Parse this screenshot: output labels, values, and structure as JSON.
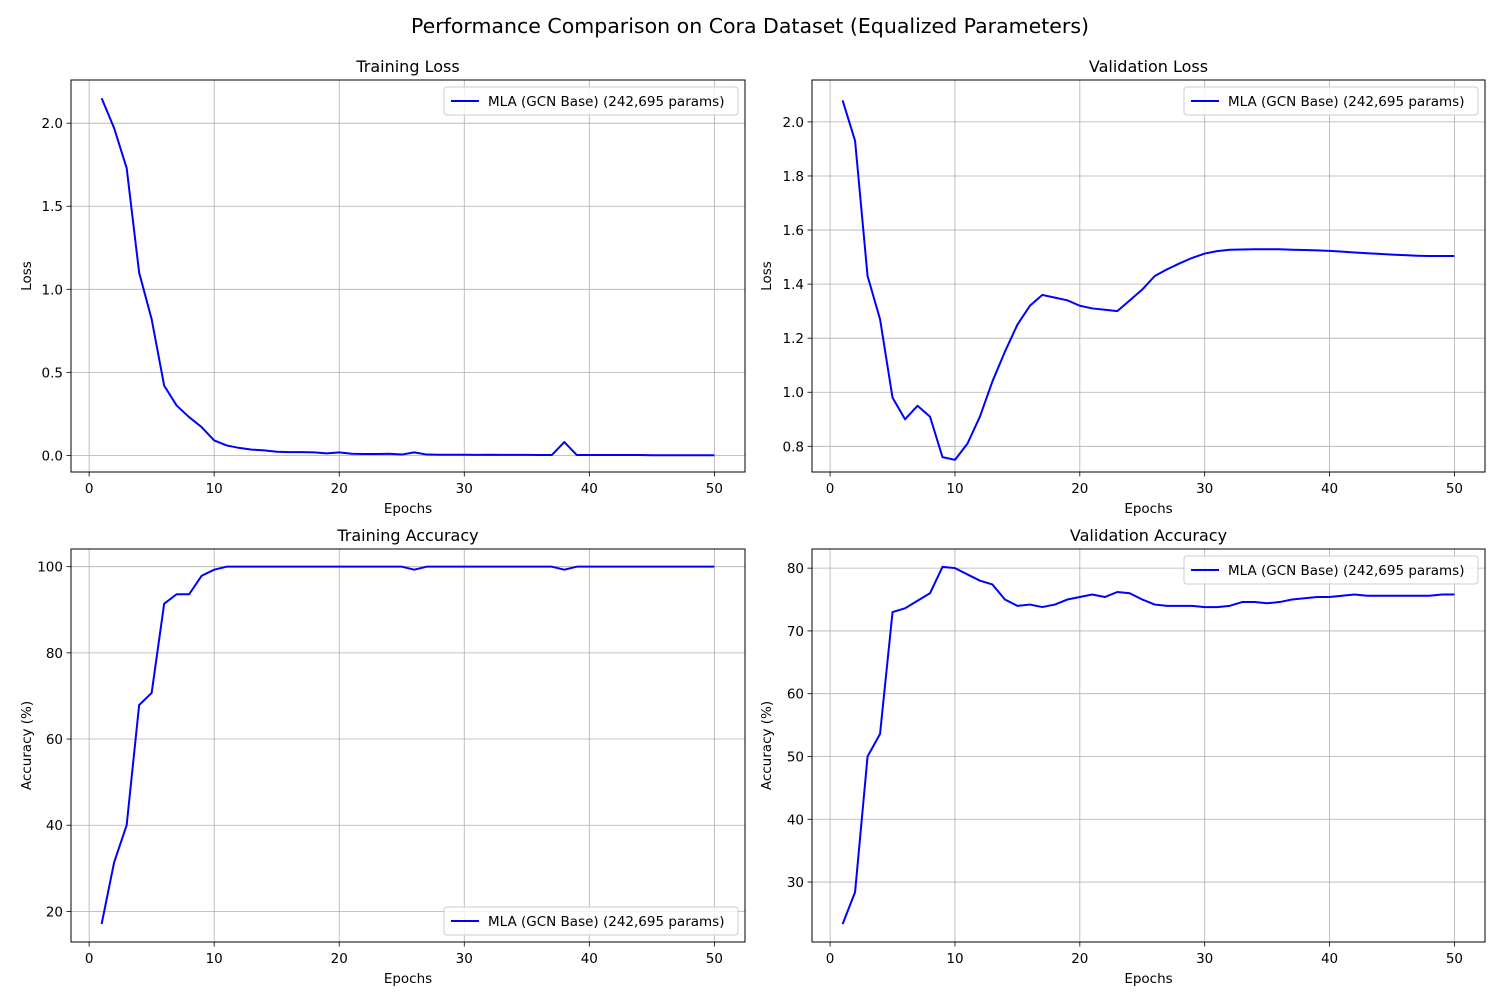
{
  "figure_title": "Performance Comparison on Cora Dataset (Equalized Parameters)",
  "colors": {
    "line": "#0000ff",
    "grid": "#b0b0b0",
    "axes": "#000000",
    "legend_border": "#cccccc"
  },
  "chart_data": [
    {
      "type": "line",
      "title": "Training Loss",
      "xlabel": "Epochs",
      "ylabel": "Loss",
      "xlim": [
        -1.45,
        52.45
      ],
      "ylim": [
        -0.1,
        2.26
      ],
      "xticks": [
        0,
        10,
        20,
        30,
        40,
        50
      ],
      "yticks": [
        0.0,
        0.5,
        1.0,
        1.5,
        2.0
      ],
      "ytick_labels": [
        "0.0",
        "0.5",
        "1.0",
        "1.5",
        "2.0"
      ],
      "grid": true,
      "legend_position": "upper-right",
      "series": [
        {
          "name": "MLA (GCN Base) (242,695 params)",
          "color": "#0000ff",
          "x": [
            1,
            2,
            3,
            4,
            5,
            6,
            7,
            8,
            9,
            10,
            11,
            12,
            13,
            14,
            15,
            16,
            17,
            18,
            19,
            20,
            21,
            22,
            23,
            24,
            25,
            26,
            27,
            28,
            29,
            30,
            31,
            32,
            33,
            34,
            35,
            36,
            37,
            38,
            39,
            40,
            41,
            42,
            43,
            44,
            45,
            46,
            47,
            48,
            49,
            50
          ],
          "values": [
            2.15,
            1.97,
            1.73,
            1.1,
            0.82,
            0.42,
            0.3,
            0.23,
            0.17,
            0.09,
            0.06,
            0.045,
            0.035,
            0.03,
            0.022,
            0.02,
            0.02,
            0.018,
            0.012,
            0.018,
            0.01,
            0.008,
            0.008,
            0.01,
            0.005,
            0.018,
            0.005,
            0.004,
            0.004,
            0.004,
            0.003,
            0.004,
            0.003,
            0.003,
            0.003,
            0.002,
            0.002,
            0.08,
            0.002,
            0.002,
            0.002,
            0.002,
            0.002,
            0.002,
            0.001,
            0.001,
            0.001,
            0.001,
            0.001,
            0.001
          ]
        }
      ]
    },
    {
      "type": "line",
      "title": "Validation Loss",
      "xlabel": "Epochs",
      "ylabel": "Loss",
      "xlim": [
        -1.45,
        52.45
      ],
      "ylim": [
        0.705,
        2.155
      ],
      "xticks": [
        0,
        10,
        20,
        30,
        40,
        50
      ],
      "yticks": [
        0.8,
        1.0,
        1.2,
        1.4,
        1.6,
        1.8,
        2.0
      ],
      "ytick_labels": [
        "0.8",
        "1.0",
        "1.2",
        "1.4",
        "1.6",
        "1.8",
        "2.0"
      ],
      "grid": true,
      "legend_position": "upper-right",
      "series": [
        {
          "name": "MLA (GCN Base) (242,695 params)",
          "color": "#0000ff",
          "x": [
            1,
            2,
            3,
            4,
            5,
            6,
            7,
            8,
            9,
            10,
            11,
            12,
            13,
            14,
            15,
            16,
            17,
            18,
            19,
            20,
            21,
            22,
            23,
            24,
            25,
            26,
            27,
            28,
            29,
            30,
            31,
            32,
            33,
            34,
            35,
            36,
            37,
            38,
            39,
            40,
            41,
            42,
            43,
            44,
            45,
            46,
            47,
            48,
            49,
            50
          ],
          "values": [
            2.08,
            1.93,
            1.43,
            1.27,
            0.98,
            0.9,
            0.95,
            0.91,
            0.76,
            0.75,
            0.81,
            0.91,
            1.04,
            1.15,
            1.25,
            1.32,
            1.36,
            1.35,
            1.34,
            1.32,
            1.31,
            1.305,
            1.3,
            1.34,
            1.38,
            1.43,
            1.455,
            1.477,
            1.497,
            1.513,
            1.522,
            1.527,
            1.528,
            1.529,
            1.529,
            1.529,
            1.527,
            1.526,
            1.525,
            1.523,
            1.52,
            1.517,
            1.514,
            1.512,
            1.509,
            1.507,
            1.505,
            1.504,
            1.504,
            1.504
          ]
        }
      ]
    },
    {
      "type": "line",
      "title": "Training Accuracy",
      "xlabel": "Epochs",
      "ylabel": "Accuracy (%)",
      "xlim": [
        -1.45,
        52.45
      ],
      "ylim": [
        12.9,
        104.1
      ],
      "xticks": [
        0,
        10,
        20,
        30,
        40,
        50
      ],
      "yticks": [
        20,
        40,
        60,
        80,
        100
      ],
      "ytick_labels": [
        "20",
        "40",
        "60",
        "80",
        "100"
      ],
      "grid": true,
      "legend_position": "lower-right",
      "series": [
        {
          "name": "MLA (GCN Base) (242,695 params)",
          "color": "#0000ff",
          "x": [
            1,
            2,
            3,
            4,
            5,
            6,
            7,
            8,
            9,
            10,
            11,
            12,
            13,
            14,
            15,
            16,
            17,
            18,
            19,
            20,
            21,
            22,
            23,
            24,
            25,
            26,
            27,
            28,
            29,
            30,
            31,
            32,
            33,
            34,
            35,
            36,
            37,
            38,
            39,
            40,
            41,
            42,
            43,
            44,
            45,
            46,
            47,
            48,
            49,
            50
          ],
          "values": [
            17.1,
            31.4,
            40.0,
            67.9,
            70.7,
            91.4,
            93.6,
            93.6,
            97.9,
            99.3,
            100,
            100,
            100,
            100,
            100,
            100,
            100,
            100,
            100,
            100,
            100,
            100,
            100,
            100,
            100,
            99.3,
            100,
            100,
            100,
            100,
            100,
            100,
            100,
            100,
            100,
            100,
            100,
            99.3,
            100,
            100,
            100,
            100,
            100,
            100,
            100,
            100,
            100,
            100,
            100,
            100
          ]
        }
      ]
    },
    {
      "type": "line",
      "title": "Validation Accuracy",
      "xlabel": "Epochs",
      "ylabel": "Accuracy (%)",
      "xlim": [
        -1.45,
        52.45
      ],
      "ylim": [
        20.45,
        83.05
      ],
      "xticks": [
        0,
        10,
        20,
        30,
        40,
        50
      ],
      "yticks": [
        30,
        40,
        50,
        60,
        70,
        80
      ],
      "ytick_labels": [
        "30",
        "40",
        "50",
        "60",
        "70",
        "80"
      ],
      "grid": true,
      "legend_position": "upper-right",
      "series": [
        {
          "name": "MLA (GCN Base) (242,695 params)",
          "color": "#0000ff",
          "x": [
            1,
            2,
            3,
            4,
            5,
            6,
            7,
            8,
            9,
            10,
            11,
            12,
            13,
            14,
            15,
            16,
            17,
            18,
            19,
            20,
            21,
            22,
            23,
            24,
            25,
            26,
            27,
            28,
            29,
            30,
            31,
            32,
            33,
            34,
            35,
            36,
            37,
            38,
            39,
            40,
            41,
            42,
            43,
            44,
            45,
            46,
            47,
            48,
            49,
            50
          ],
          "values": [
            23.3,
            28.4,
            50.0,
            53.6,
            73.0,
            73.6,
            74.8,
            76.0,
            80.2,
            80.0,
            79.0,
            78.0,
            77.4,
            75.0,
            74.0,
            74.2,
            73.8,
            74.2,
            75.0,
            75.4,
            75.8,
            75.4,
            76.2,
            76.0,
            75.0,
            74.2,
            74.0,
            74.0,
            74.0,
            73.8,
            73.8,
            74.0,
            74.6,
            74.6,
            74.4,
            74.6,
            75.0,
            75.2,
            75.4,
            75.4,
            75.6,
            75.8,
            75.6,
            75.6,
            75.6,
            75.6,
            75.6,
            75.6,
            75.8,
            75.8
          ]
        }
      ]
    }
  ]
}
